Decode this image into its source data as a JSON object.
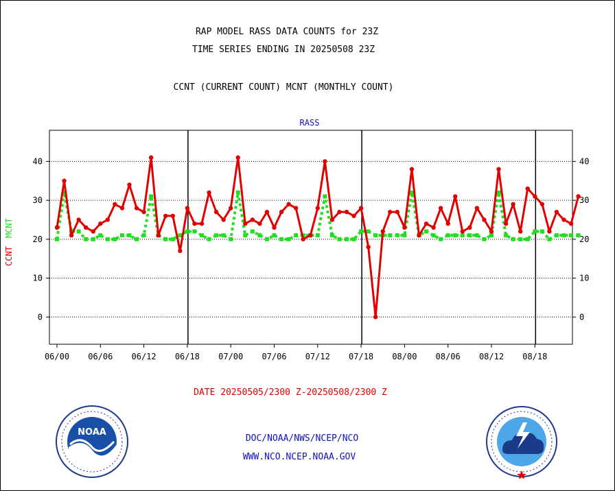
{
  "title_line1": "RAP MODEL RASS DATA COUNTS for 23Z",
  "title_line2": "TIME SERIES ENDING IN 20250508 23Z",
  "subtitle": "CCNT (CURRENT COUNT) MCNT (MONTHLY COUNT)",
  "panel_label": "RASS",
  "ylabel_ccnt": "CCNT",
  "ylabel_mcnt": "MCNT",
  "date_range": "DATE 20250505/2300 Z-20250508/2300 Z",
  "footer_org": "DOC/NOAA/NWS/NCEP/NCO",
  "footer_url": "WWW.NCO.NCEP.NOAA.GOV",
  "logos": {
    "left": "NOAA",
    "right": "National Weather Service"
  },
  "colors": {
    "ccnt": "#e00000",
    "mcnt": "#22dd22",
    "text_blue": "#1010c0",
    "text_red": "#e00000"
  },
  "chart_data": {
    "type": "line",
    "title": "RAP MODEL RASS DATA COUNTS for 23Z",
    "x_tick_labels": [
      "06/00",
      "06/06",
      "06/12",
      "06/18",
      "07/00",
      "07/06",
      "07/12",
      "07/18",
      "08/00",
      "08/06",
      "08/12",
      "08/18"
    ],
    "y_ticks": [
      0,
      10,
      20,
      30,
      40
    ],
    "ylim": [
      -7,
      48
    ],
    "grid": true,
    "series": [
      {
        "name": "CCNT",
        "color": "#e00000",
        "values": [
          23,
          35,
          21,
          25,
          23,
          22,
          24,
          25,
          29,
          28,
          34,
          28,
          27,
          41,
          21,
          26,
          26,
          17,
          28,
          24,
          24,
          32,
          27,
          25,
          28,
          41,
          24,
          25,
          24,
          27,
          23,
          27,
          29,
          28,
          20,
          21,
          28,
          40,
          25,
          27,
          27,
          26,
          28,
          18,
          0,
          22,
          27,
          27,
          23,
          38,
          21,
          24,
          23,
          28,
          24,
          31,
          22,
          23,
          28,
          25,
          22,
          38,
          24,
          29,
          22,
          33,
          31,
          29,
          22,
          27,
          25,
          24,
          31
        ]
      },
      {
        "name": "MCNT",
        "color": "#22dd22",
        "values": [
          20,
          32,
          22,
          22,
          20,
          20,
          21,
          20,
          20,
          21,
          21,
          20,
          21,
          31,
          21,
          20,
          20,
          21,
          22,
          22,
          21,
          20,
          21,
          21,
          20,
          32,
          21,
          22,
          21,
          20,
          21,
          20,
          20,
          21,
          21,
          21,
          21,
          31,
          21,
          20,
          20,
          20,
          22,
          22,
          21,
          21,
          21,
          21,
          21,
          32,
          21,
          22,
          21,
          20,
          21,
          21,
          21,
          21,
          21,
          20,
          21,
          32,
          21,
          20,
          20,
          20,
          22,
          22,
          20,
          21,
          21,
          21,
          21
        ]
      }
    ]
  }
}
